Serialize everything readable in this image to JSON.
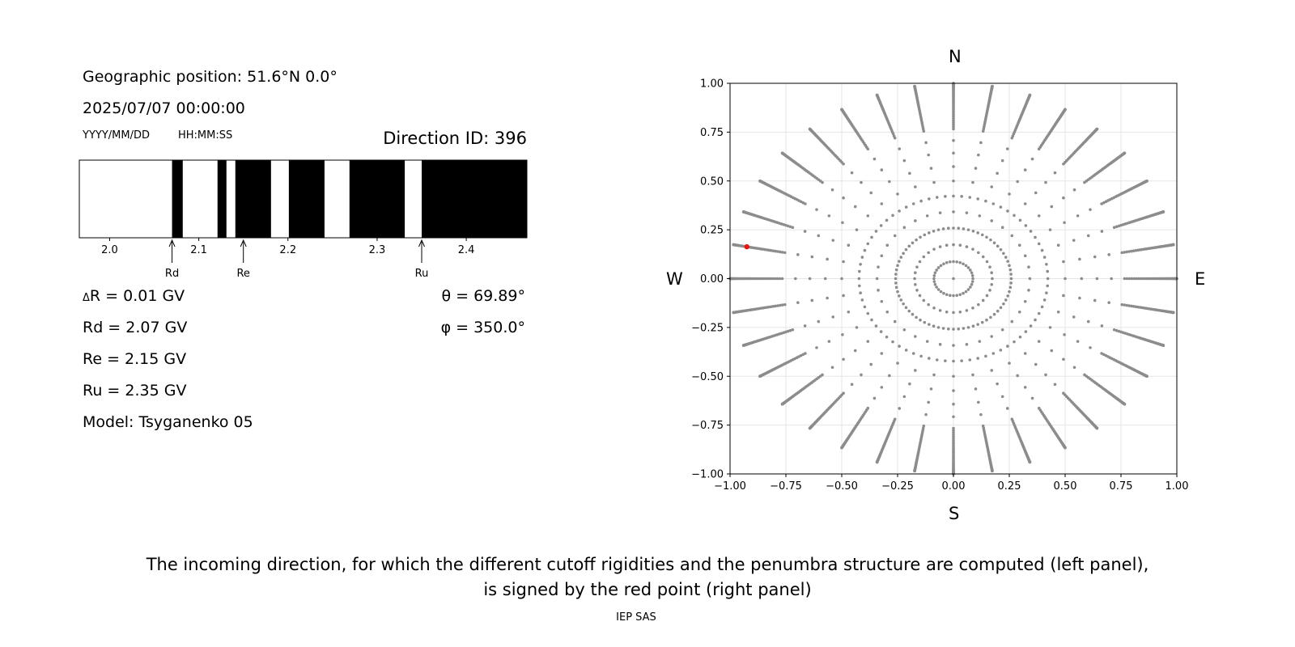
{
  "info": {
    "geo_position": "Geographic position: 51.6°N 0.0°",
    "datetime": "2025/07/07 00:00:00",
    "date_format": "YYYY/MM/DD",
    "time_format": "HH:MM:SS",
    "direction_id": "Direction ID: 396",
    "delta_r": "R = 0.01 GV",
    "delta_symbol": "Δ",
    "rd": "Rd = 2.07 GV",
    "re": "Re = 2.15 GV",
    "ru": "Ru = 2.35 GV",
    "model": "Model: Tsyganenko 05",
    "theta": "θ = 69.89°",
    "phi": "φ = 350.0°"
  },
  "penumbra": {
    "range": [
      1.966,
      2.468
    ],
    "ticks": [
      "2.0",
      "2.1",
      "2.2",
      "2.3",
      "2.4"
    ],
    "tick_values": [
      2.0,
      2.1,
      2.2,
      2.3,
      2.4
    ],
    "black_bands": [
      [
        2.07,
        2.082
      ],
      [
        2.121,
        2.131
      ],
      [
        2.141,
        2.181
      ],
      [
        2.201,
        2.241
      ],
      [
        2.269,
        2.331
      ],
      [
        2.35,
        2.468
      ]
    ],
    "markers": [
      {
        "label": "Rd",
        "value": 2.07
      },
      {
        "label": "Re",
        "value": 2.15
      },
      {
        "label": "Ru",
        "value": 2.35
      }
    ]
  },
  "compass": {
    "N": "N",
    "S": "S",
    "E": "E",
    "W": "W"
  },
  "colors": {
    "point": "#8c8c8c",
    "highlight": "#e8170e",
    "bar": "#000000"
  },
  "chart_data": {
    "type": "scatter",
    "title": "",
    "xlim": [
      -1.0,
      1.0
    ],
    "ylim": [
      -1.0,
      1.0
    ],
    "grid": true,
    "xticks": [
      "−1.00",
      "−0.75",
      "−0.50",
      "−0.25",
      "0.00",
      "0.25",
      "0.50",
      "0.75",
      "1.00"
    ],
    "yticks": [
      "1.00",
      "0.75",
      "0.50",
      "0.25",
      "0.00",
      "−0.25",
      "−0.50",
      "−0.75",
      "−1.00"
    ],
    "tick_values": [
      -1.0,
      -0.75,
      -0.5,
      -0.25,
      0.0,
      0.25,
      0.5,
      0.75,
      1.0
    ],
    "series": [
      {
        "description": "incoming directions on polar grid",
        "r_values": [
          0.0,
          0.25,
          0.43,
          0.58,
          0.71,
          0.82,
          0.9,
          0.96,
          1.0
        ],
        "radial_profile": "sin(theta), theta every 5 degrees from 0 to 90",
        "azimuth_step_deg": 10,
        "ring_fine_step_deg": 5
      },
      {
        "description": "selected direction",
        "x": -0.9249,
        "y": 0.1631,
        "theta_deg": 69.89,
        "phi_deg": 350.0
      }
    ]
  },
  "footer": {
    "caption_line1": "The incoming direction, for which the different cutoff rigidities and the penumbra structure are computed (left panel),",
    "caption_line2": "is signed by the red point (right panel)",
    "credit": "IEP SAS"
  }
}
